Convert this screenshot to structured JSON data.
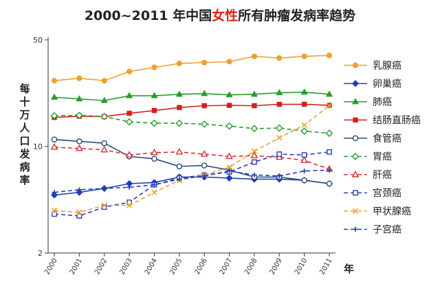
{
  "title": {
    "prefix": "2000~2011 年中国",
    "highlight": "女性",
    "suffix": "所有肿瘤发病率趋势",
    "highlight_color": "#d9261c"
  },
  "chart_data": {
    "type": "line",
    "title": "2000~2011 年中国女性所有肿瘤发病率趋势",
    "xlabel": "年",
    "ylabel": "每十万人口发病率",
    "y_scale": "log",
    "ylim": [
      2,
      50
    ],
    "yticks": [
      2,
      10,
      50
    ],
    "grid": false,
    "legend_position": "right",
    "categories": [
      "2000",
      "2001",
      "2002",
      "2003",
      "2004",
      "2005",
      "2006",
      "2007",
      "2008",
      "2009",
      "2010",
      "2011"
    ],
    "series": [
      {
        "name": "乳腺癌",
        "color": "#f0a030",
        "marker": "circle",
        "dash": false,
        "values": [
          27,
          28,
          27,
          31,
          33,
          35,
          35.5,
          36,
          39,
          38,
          39,
          39.5
        ]
      },
      {
        "name": "卵巢癌",
        "color": "#1f3fb4",
        "marker": "diamond",
        "dash": false,
        "values": [
          4.8,
          5.0,
          5.3,
          5.7,
          5.8,
          6.3,
          6.3,
          6.2,
          6.1,
          6.1,
          6.0,
          5.7
        ]
      },
      {
        "name": "肺癌",
        "color": "#2a9a2a",
        "marker": "triangle",
        "dash": false,
        "values": [
          21,
          20.5,
          20,
          21.5,
          21.5,
          22,
          22.2,
          21.8,
          22,
          22.5,
          22.7,
          22
        ]
      },
      {
        "name": "结肠直肠癌",
        "color": "#d42020",
        "marker": "square",
        "dash": false,
        "values": [
          15.5,
          15.8,
          15.7,
          16.5,
          17.2,
          18,
          18.5,
          18.6,
          18.5,
          18.9,
          18.9,
          18.6
        ]
      },
      {
        "name": "食管癌",
        "color": "#2a4a7a",
        "marker": "circle-open",
        "dash": false,
        "values": [
          11.1,
          10.8,
          10.5,
          8.6,
          8.3,
          7.4,
          7.5,
          7.0,
          6.3,
          6.3,
          6.0,
          5.7
        ]
      },
      {
        "name": "胃癌",
        "color": "#2a9a2a",
        "marker": "diamond-open",
        "dash": true,
        "values": [
          15.9,
          16,
          15.7,
          14.5,
          14.2,
          14.2,
          14,
          13.6,
          13.1,
          13.2,
          12.6,
          12.2
        ]
      },
      {
        "name": "肝癌",
        "color": "#d43030",
        "marker": "triangle-open",
        "dash": true,
        "values": [
          9.9,
          9.7,
          9.5,
          8.8,
          9.1,
          9.2,
          8.9,
          8.6,
          8.7,
          8.5,
          8.1,
          7.1
        ]
      },
      {
        "name": "宫颈癌",
        "color": "#2a3ab4",
        "marker": "square-open",
        "dash": true,
        "values": [
          3.6,
          3.5,
          4.0,
          4.3,
          5.6,
          6.2,
          6.5,
          6.8,
          7.9,
          8.9,
          8.8,
          9.2
        ]
      },
      {
        "name": "甲状腺癌",
        "color": "#f0a030",
        "marker": "x",
        "dash": true,
        "values": [
          3.8,
          3.7,
          4.1,
          4.1,
          5.0,
          6.0,
          6.5,
          7.3,
          9.3,
          11.4,
          13.8,
          18.5
        ]
      },
      {
        "name": "子宫癌",
        "color": "#1f3fb4",
        "marker": "plus",
        "dash": true,
        "values": [
          5.0,
          5.2,
          5.3,
          5.4,
          5.6,
          6.1,
          6.4,
          6.9,
          6.5,
          6.4,
          6.9,
          7.0
        ]
      }
    ]
  }
}
